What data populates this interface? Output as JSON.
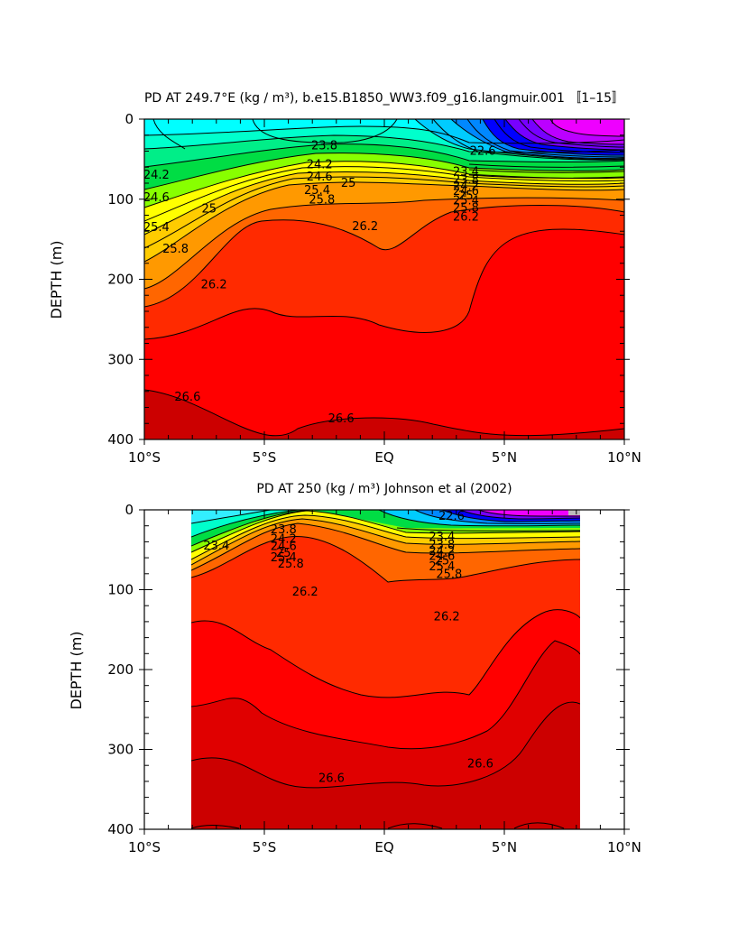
{
  "chart_data": [
    {
      "type": "contour",
      "title": "PD AT 249.7°E (kg / m³), b.e15.B1850_WW3.f09_g16.langmuir.001 〚1–15〛",
      "xlabel": "",
      "ylabel": "DEPTH (m)",
      "xlim": [
        -10,
        10
      ],
      "ylim": [
        400,
        0
      ],
      "x_ticks": [
        "10°S",
        "5°S",
        "EQ",
        "5°N",
        "10°N"
      ],
      "y_ticks": [
        "0",
        "100",
        "200",
        "300",
        "400"
      ],
      "x_coverage": [
        -10,
        10
      ],
      "contour_labels": [
        {
          "text": "23.8",
          "x": -2.5,
          "depth": 33
        },
        {
          "text": "22.6",
          "x": 4.1,
          "depth": 40
        },
        {
          "text": "24.2",
          "x": -9.5,
          "depth": 70
        },
        {
          "text": "24.2",
          "x": -2.7,
          "depth": 57
        },
        {
          "text": "24.6",
          "x": -2.7,
          "depth": 72
        },
        {
          "text": "25",
          "x": -1.5,
          "depth": 80
        },
        {
          "text": "24.6",
          "x": -9.5,
          "depth": 98
        },
        {
          "text": "25",
          "x": -7.3,
          "depth": 112
        },
        {
          "text": "25.4",
          "x": -2.8,
          "depth": 89
        },
        {
          "text": "25.8",
          "x": -2.6,
          "depth": 101
        },
        {
          "text": "25.4",
          "x": -9.5,
          "depth": 135
        },
        {
          "text": "25.8",
          "x": -8.7,
          "depth": 162
        },
        {
          "text": "26.2",
          "x": -7.1,
          "depth": 207
        },
        {
          "text": "26.2",
          "x": -0.8,
          "depth": 134
        },
        {
          "text": "23.4",
          "x": 3.4,
          "depth": 66
        },
        {
          "text": "23.8",
          "x": 3.4,
          "depth": 76
        },
        {
          "text": "24.2",
          "x": 3.4,
          "depth": 84
        },
        {
          "text": "24.6",
          "x": 3.4,
          "depth": 90
        },
        {
          "text": "25",
          "x": 3.4,
          "depth": 96
        },
        {
          "text": "25.4",
          "x": 3.4,
          "depth": 102
        },
        {
          "text": "25.8",
          "x": 3.4,
          "depth": 111
        },
        {
          "text": "26.2",
          "x": 3.4,
          "depth": 122
        },
        {
          "text": "26.6",
          "x": -8.2,
          "depth": 347
        },
        {
          "text": "26.6",
          "x": -1.8,
          "depth": 374
        }
      ]
    },
    {
      "type": "contour",
      "title": "PD AT 250 (kg / m³) Johnson et al (2002)",
      "xlabel": "",
      "ylabel": "DEPTH (m)",
      "xlim": [
        -10,
        10
      ],
      "ylim": [
        400,
        0
      ],
      "x_ticks": [
        "10°S",
        "5°S",
        "EQ",
        "5°N",
        "10°N"
      ],
      "y_ticks": [
        "0",
        "100",
        "200",
        "300",
        "400"
      ],
      "x_coverage": [
        -8,
        8.2
      ],
      "contour_labels": [
        {
          "text": "23.4",
          "x": -7,
          "depth": 45
        },
        {
          "text": "23.8",
          "x": -4.2,
          "depth": 25
        },
        {
          "text": "24.2",
          "x": -4.2,
          "depth": 37
        },
        {
          "text": "24.6",
          "x": -4.2,
          "depth": 46
        },
        {
          "text": "25",
          "x": -4.2,
          "depth": 54
        },
        {
          "text": "25.4",
          "x": -4.2,
          "depth": 60
        },
        {
          "text": "25.8",
          "x": -3.9,
          "depth": 68
        },
        {
          "text": "22.6",
          "x": 2.8,
          "depth": 8
        },
        {
          "text": "23.4",
          "x": 2.4,
          "depth": 34
        },
        {
          "text": "23.8",
          "x": 2.4,
          "depth": 44
        },
        {
          "text": "24.2",
          "x": 2.4,
          "depth": 52
        },
        {
          "text": "24.6",
          "x": 2.4,
          "depth": 58
        },
        {
          "text": "25",
          "x": 2.4,
          "depth": 64
        },
        {
          "text": "25.4",
          "x": 2.4,
          "depth": 71
        },
        {
          "text": "25.8",
          "x": 2.7,
          "depth": 81
        },
        {
          "text": "26.2",
          "x": -3.3,
          "depth": 103
        },
        {
          "text": "26.2",
          "x": 2.6,
          "depth": 134
        },
        {
          "text": "26.6",
          "x": -2.2,
          "depth": 336
        },
        {
          "text": "26.6",
          "x": 4.0,
          "depth": 318
        }
      ]
    }
  ]
}
